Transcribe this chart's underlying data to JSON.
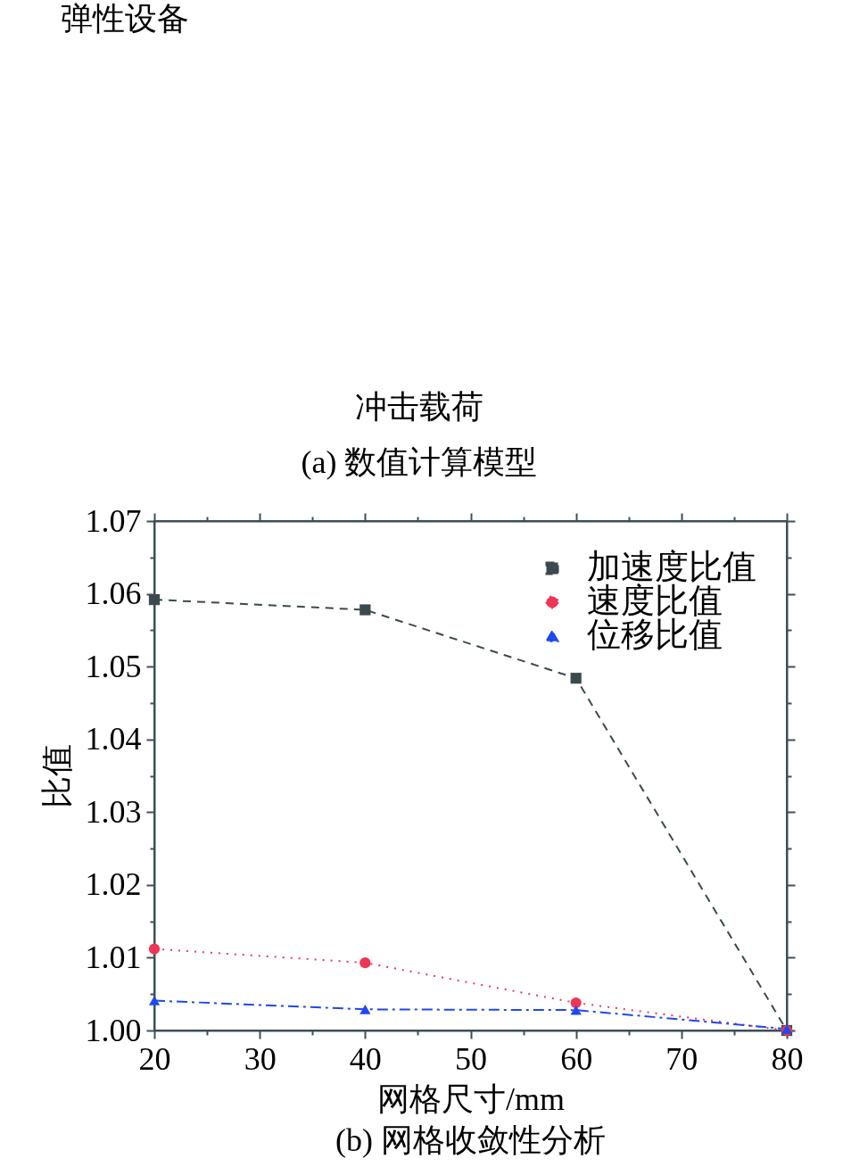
{
  "chart_data": [
    {
      "type": "other",
      "title": "(a) 数值计算模型",
      "annotations": [
        "弹性设备",
        "冲击载荷"
      ]
    },
    {
      "type": "line",
      "title": "(b) 网格收敛性分析",
      "xlabel": "网格尺寸/mm",
      "ylabel": "比值",
      "x": [
        20,
        40,
        60,
        80
      ],
      "xlim": [
        20,
        80
      ],
      "ylim": [
        1.0,
        1.07
      ],
      "xticks": [
        20,
        {
          "value": 25,
          "label": null
        },
        30,
        {
          "value": 35,
          "label": null
        },
        40,
        {
          "value": 45,
          "label": null
        },
        50,
        {
          "value": 55,
          "label": null
        },
        60,
        {
          "value": 65,
          "label": null
        },
        70,
        {
          "value": 75,
          "label": null
        },
        80
      ],
      "yticks": [
        {
          "value": 1.0,
          "label": "1.00"
        },
        {
          "value": 1.005,
          "label": null
        },
        1.01,
        {
          "value": 1.015,
          "label": null
        },
        1.02,
        {
          "value": 1.025,
          "label": null
        },
        1.03,
        {
          "value": 1.035,
          "label": null
        },
        1.04,
        {
          "value": 1.045,
          "label": null
        },
        1.05,
        {
          "value": 1.055,
          "label": null
        },
        1.06,
        {
          "value": 1.065,
          "label": null
        },
        1.07
      ],
      "series": [
        {
          "name": "加速度比值",
          "color": "#3b4a4f",
          "values": [
            1.0592,
            1.0578,
            1.0484,
            1.0
          ],
          "marker": "square",
          "line_style": "dashed"
        },
        {
          "name": "速度比值",
          "color": "#ef3556",
          "values": [
            1.0112,
            1.0093,
            1.0038,
            1.0
          ],
          "marker": "circle",
          "line_style": "dotted"
        },
        {
          "name": "位移比值",
          "color": "#1f48f0",
          "values": [
            1.0041,
            1.0029,
            1.0028,
            1.0002
          ],
          "marker": "triangle",
          "line_style": "dashdot"
        }
      ],
      "legend": "top right",
      "grid": false
    }
  ]
}
